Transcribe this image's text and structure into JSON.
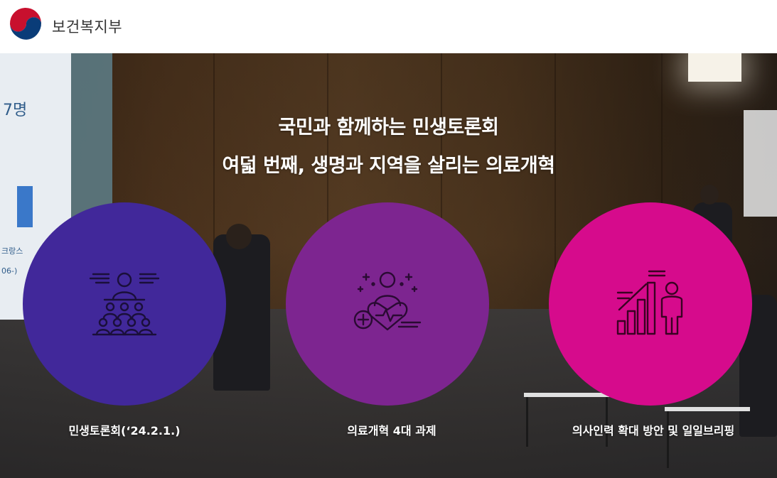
{
  "header": {
    "org_name": "보건복지부",
    "logo_icon": "taegeuk-logo-icon"
  },
  "hero": {
    "title_line1": "국민과 함께하는 민생토론회",
    "title_line2": "여덟 번째, 생명과 지역을 살리는 의료개혁",
    "background_screen": {
      "count_text": "7명",
      "label_text": "크랑스",
      "range_text": "06-)"
    }
  },
  "cards": [
    {
      "label": "민생토론회(‘24.2.1.)",
      "color": "#41289a",
      "icon": "audience-speaker-icon"
    },
    {
      "label": "의료개혁 4대 과제",
      "color": "#7d2590",
      "icon": "doctor-health-heart-icon"
    },
    {
      "label": "의사인력 확대 방안 및 일일브리핑",
      "color": "#d60b8c",
      "icon": "growth-chart-person-icon"
    }
  ]
}
